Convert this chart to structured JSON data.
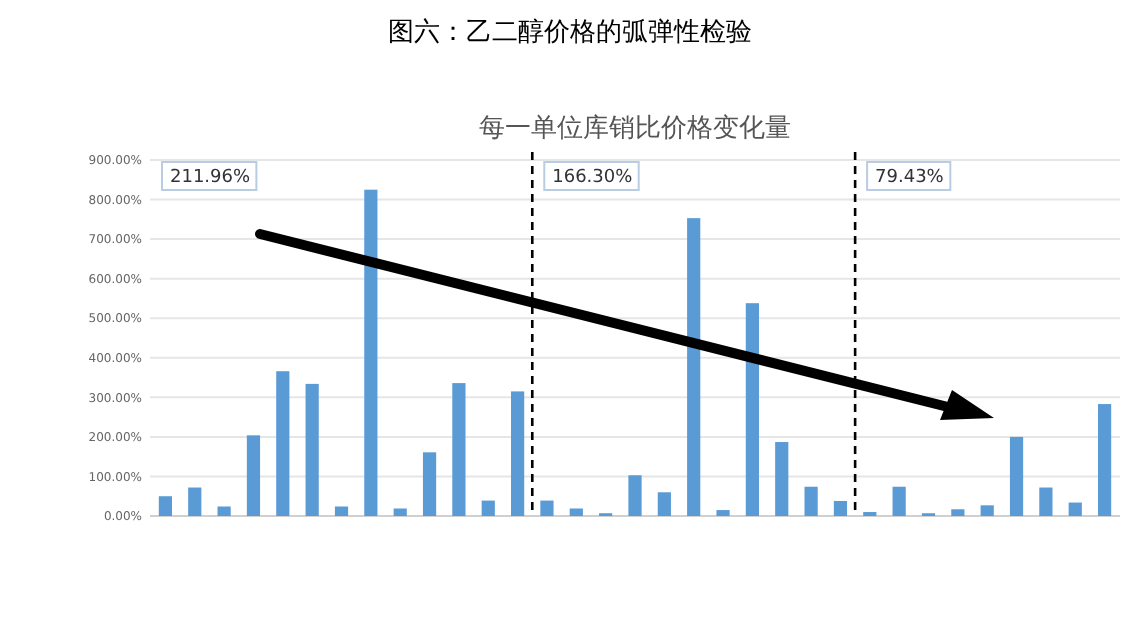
{
  "chart_data": {
    "type": "bar",
    "title": "图六：乙二醇价格的弧弹性检验",
    "subtitle": "每一单位库销比价格变化量",
    "categories": [
      null,
      null,
      null,
      null,
      null,
      null,
      null,
      null,
      null,
      null,
      null,
      null,
      null,
      null,
      null,
      null,
      null,
      null,
      null,
      null,
      null,
      null,
      null,
      null,
      null,
      null,
      null,
      null,
      null,
      null,
      null,
      null,
      null
    ],
    "values": [
      50,
      72,
      24,
      204,
      366,
      334,
      24,
      825,
      19,
      161,
      336,
      39,
      315,
      39,
      19,
      7,
      103,
      60,
      753,
      15,
      538,
      187,
      74,
      38,
      10,
      74,
      7,
      17,
      27,
      200,
      72,
      34,
      283
    ],
    "color": "#5b9bd5",
    "ylim": [
      0,
      900
    ],
    "yticks": [
      {
        "value": 0,
        "label": "0.00%"
      },
      {
        "value": 100,
        "label": "100.00%"
      },
      {
        "value": 200,
        "label": "200.00%"
      },
      {
        "value": 300,
        "label": "300.00%"
      },
      {
        "value": 400,
        "label": "400.00%"
      },
      {
        "value": 500,
        "label": "500.00%"
      },
      {
        "value": 600,
        "label": "600.00%"
      },
      {
        "value": 700,
        "label": "700.00%"
      },
      {
        "value": 800,
        "label": "800.00%"
      },
      {
        "value": 900,
        "label": "900.00%"
      }
    ],
    "grid": "y",
    "annotations": [
      "211.96%",
      "166.30%",
      "79.43%"
    ]
  }
}
